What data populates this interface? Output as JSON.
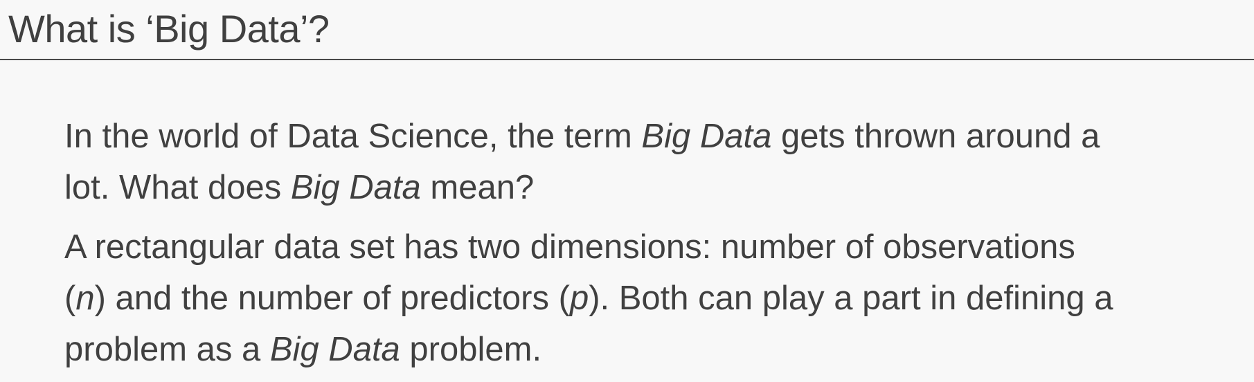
{
  "slide": {
    "title": "What is ‘Big Data’?"
  },
  "paragraph1": {
    "l1_a": "In the world of Data Science, the term ",
    "l1_em": "Big Data",
    "l1_b": " gets thrown around a",
    "l2_a": "lot.  What does ",
    "l2_em": "Big Data",
    "l2_b": " mean?"
  },
  "paragraph2": {
    "l1": "A rectangular data set has two dimensions: number of observations",
    "l2_a": "(",
    "l2_n": "n",
    "l2_b": ") and the number of predictors (",
    "l2_p": "p",
    "l2_c": "). Both can play a part in defining a",
    "l3_a": "problem as a ",
    "l3_em": "Big Data",
    "l3_b": " problem."
  }
}
